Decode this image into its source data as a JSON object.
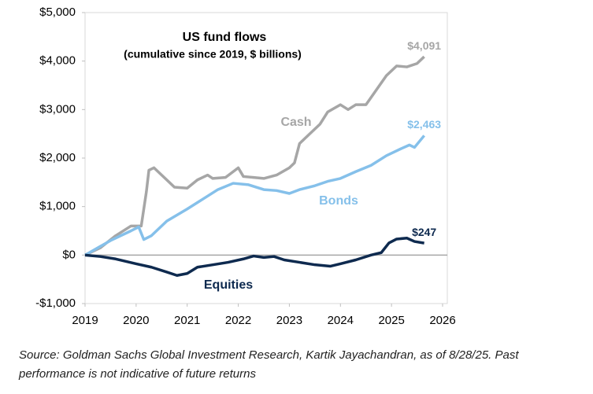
{
  "chart_data": {
    "type": "line",
    "title": "US fund flows",
    "subtitle": "(cumulative since 2019, $ billions)",
    "source": "Source: Goldman Sachs Global Investment Research, Kartik Jayachandran,  as of 8/28/25. Past performance is not indicative of future returns",
    "xlim": [
      2019,
      2026
    ],
    "xticks": [
      2019,
      2020,
      2021,
      2022,
      2023,
      2024,
      2025,
      2026
    ],
    "ylim": [
      -1000,
      5000
    ],
    "yticks": [
      {
        "value": -1000,
        "label": "-$1,000"
      },
      {
        "value": 0,
        "label": "$0"
      },
      {
        "value": 1000,
        "label": "$1,000"
      },
      {
        "value": 2000,
        "label": "$2,000"
      },
      {
        "value": 3000,
        "label": "$3,000"
      },
      {
        "value": 4000,
        "label": "$4,000"
      },
      {
        "value": 5000,
        "label": "$5,000"
      }
    ],
    "series": [
      {
        "name": "Cash",
        "color": "#a6a6a6",
        "end_label": "$4,091",
        "x": [
          2019,
          2019.3,
          2019.6,
          2019.9,
          2020.1,
          2020.2,
          2020.25,
          2020.35,
          2020.5,
          2020.6,
          2020.75,
          2021.0,
          2021.2,
          2021.4,
          2021.5,
          2021.75,
          2022.0,
          2022.1,
          2022.3,
          2022.5,
          2022.75,
          2023.0,
          2023.1,
          2023.2,
          2023.4,
          2023.6,
          2023.75,
          2024.0,
          2024.15,
          2024.3,
          2024.5,
          2024.7,
          2024.9,
          2025.1,
          2025.3,
          2025.5,
          2025.64
        ],
        "values": [
          0,
          150,
          400,
          600,
          600,
          1300,
          1750,
          1800,
          1650,
          1550,
          1400,
          1380,
          1550,
          1650,
          1580,
          1600,
          1800,
          1620,
          1600,
          1580,
          1650,
          1800,
          1900,
          2300,
          2500,
          2700,
          2950,
          3100,
          3000,
          3100,
          3100,
          3400,
          3700,
          3900,
          3880,
          3950,
          4091
        ]
      },
      {
        "name": "Bonds",
        "color": "#85c0ea",
        "end_label": "$2,463",
        "x": [
          2019,
          2019.5,
          2019.9,
          2020.05,
          2020.15,
          2020.3,
          2020.6,
          2021.0,
          2021.3,
          2021.6,
          2021.9,
          2022.2,
          2022.5,
          2022.75,
          2023.0,
          2023.2,
          2023.5,
          2023.75,
          2024.0,
          2024.3,
          2024.6,
          2024.9,
          2025.2,
          2025.35,
          2025.45,
          2025.64
        ],
        "values": [
          0,
          300,
          500,
          580,
          320,
          400,
          700,
          950,
          1150,
          1350,
          1480,
          1450,
          1350,
          1330,
          1270,
          1350,
          1430,
          1520,
          1580,
          1720,
          1850,
          2050,
          2200,
          2270,
          2220,
          2463
        ]
      },
      {
        "name": "Equities",
        "color": "#0e2a4f",
        "end_label": "$247",
        "x": [
          2019,
          2019.3,
          2019.6,
          2020.0,
          2020.3,
          2020.6,
          2020.8,
          2021.0,
          2021.2,
          2021.5,
          2021.8,
          2022.1,
          2022.3,
          2022.5,
          2022.7,
          2022.9,
          2023.2,
          2023.5,
          2023.8,
          2024.0,
          2024.3,
          2024.6,
          2024.8,
          2024.95,
          2025.1,
          2025.3,
          2025.45,
          2025.64
        ],
        "values": [
          0,
          -30,
          -80,
          -180,
          -250,
          -350,
          -420,
          -380,
          -250,
          -200,
          -150,
          -80,
          -20,
          -50,
          -30,
          -100,
          -150,
          -200,
          -230,
          -180,
          -100,
          0,
          50,
          250,
          330,
          350,
          280,
          247
        ]
      }
    ]
  }
}
